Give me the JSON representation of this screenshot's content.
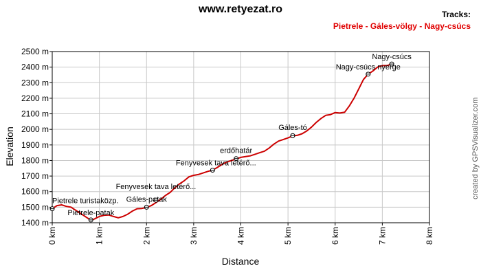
{
  "header": {
    "title": "www.retyezat.ro",
    "tracks_label": "Tracks:",
    "track_name": "Pietrele - Gáles-völgy - Nagy-csúcs",
    "credit": "created by GPSVisualizer.com"
  },
  "colors": {
    "track": "#cc0000",
    "track_name": "#e00000",
    "grid": "#c8c8c8",
    "axis": "#000000"
  },
  "chart_data": {
    "type": "line",
    "title": "www.retyezat.ro",
    "xlabel": "Distance",
    "ylabel": "Elevation",
    "xlim": [
      0,
      8
    ],
    "ylim": [
      1400,
      2500
    ],
    "x_ticks": [
      "0 km",
      "1 km",
      "2 km",
      "3 km",
      "4 km",
      "5 km",
      "6 km",
      "7 km",
      "8 km"
    ],
    "y_ticks": [
      "1400 m",
      "1500 m",
      "1600 m",
      "1700 m",
      "1800 m",
      "1900 m",
      "2000 m",
      "2100 m",
      "2200 m",
      "2300 m",
      "2400 m",
      "2500 m"
    ],
    "grid": true,
    "legend": "top-right",
    "series": [
      {
        "name": "Pietrele - Gáles-völgy - Nagy-csúcs",
        "x": [
          0,
          0.1,
          0.2,
          0.3,
          0.4,
          0.5,
          0.6,
          0.7,
          0.8,
          0.85,
          0.9,
          1.0,
          1.1,
          1.2,
          1.3,
          1.4,
          1.5,
          1.6,
          1.7,
          1.8,
          1.9,
          2.0,
          2.1,
          2.2,
          2.3,
          2.4,
          2.5,
          2.6,
          2.7,
          2.8,
          2.9,
          3.0,
          3.1,
          3.2,
          3.3,
          3.4,
          3.5,
          3.6,
          3.7,
          3.8,
          3.9,
          4.0,
          4.1,
          4.2,
          4.3,
          4.4,
          4.5,
          4.6,
          4.7,
          4.8,
          4.9,
          5.0,
          5.1,
          5.2,
          5.3,
          5.4,
          5.5,
          5.6,
          5.7,
          5.8,
          5.9,
          6.0,
          6.1,
          6.2,
          6.3,
          6.4,
          6.5,
          6.6,
          6.7,
          6.8,
          6.9,
          7.0,
          7.1,
          7.2
        ],
        "y": [
          1490,
          1510,
          1515,
          1505,
          1500,
          1480,
          1460,
          1440,
          1420,
          1418,
          1425,
          1440,
          1448,
          1450,
          1440,
          1432,
          1440,
          1455,
          1475,
          1490,
          1492,
          1498,
          1510,
          1530,
          1550,
          1575,
          1595,
          1625,
          1650,
          1670,
          1695,
          1705,
          1710,
          1720,
          1730,
          1738,
          1755,
          1775,
          1790,
          1800,
          1810,
          1820,
          1825,
          1830,
          1840,
          1850,
          1860,
          1880,
          1905,
          1925,
          1935,
          1945,
          1958,
          1962,
          1972,
          1990,
          2015,
          2045,
          2070,
          2090,
          2095,
          2108,
          2105,
          2110,
          2150,
          2200,
          2260,
          2320,
          2355,
          2375,
          2400,
          2410,
          2410,
          2420
        ]
      }
    ],
    "waypoints": [
      {
        "name": "Pietrele turistaközp.",
        "x": 0.0,
        "y": 1490
      },
      {
        "name": "Pietrele-patak",
        "x": 0.82,
        "y": 1418
      },
      {
        "name": "Gáles-patak",
        "x": 2.0,
        "y": 1500
      },
      {
        "name": "Fenyvesek tava letérő...",
        "x": 2.2,
        "y": 1545
      },
      {
        "name": "Fenyvesek tava letérő...",
        "x": 3.4,
        "y": 1738
      },
      {
        "name": "erdőhatár",
        "x": 3.9,
        "y": 1812
      },
      {
        "name": "Gáles-tó",
        "x": 5.1,
        "y": 1960
      },
      {
        "name": "Nagy-csúcs nyerge",
        "x": 6.7,
        "y": 2355
      },
      {
        "name": "Nagy-csúcs",
        "x": 7.2,
        "y": 2420
      }
    ]
  }
}
